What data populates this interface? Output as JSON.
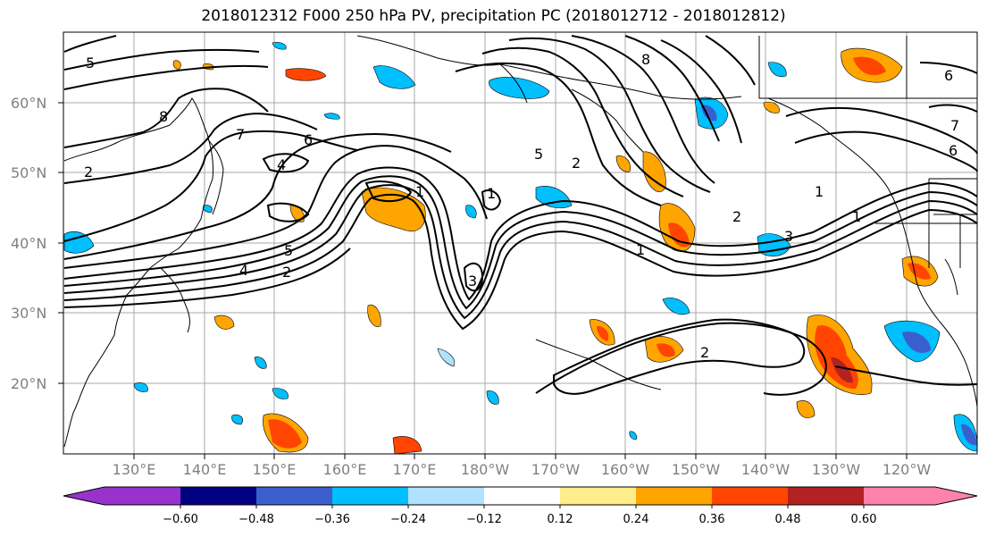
{
  "title": "2018012312 F000 250 hPa PV, precipitation PC (2018012712 - 2018012812)",
  "map": {
    "lat_labels": [
      "60°N",
      "50°N",
      "40°N",
      "30°N",
      "20°N"
    ],
    "lon_labels": [
      "130°E",
      "140°E",
      "150°E",
      "160°E",
      "170°E",
      "180°W",
      "170°W",
      "160°W",
      "150°W",
      "140°W",
      "130°W",
      "120°W"
    ],
    "contour_labels": [
      "5",
      "8",
      "7",
      "6",
      "4",
      "1",
      "2",
      "5",
      "4",
      "2",
      "3",
      "5",
      "1",
      "2",
      "8",
      "2",
      "6",
      "1",
      "3",
      "1",
      "2",
      "6",
      "7",
      "1"
    ],
    "shading_colors": [
      "#9932cc",
      "#000080",
      "#3a5fcd",
      "#00bfff",
      "#b0e2ff",
      "#ffffff",
      "#ffec8b",
      "#ffa500",
      "#ff4500",
      "#b22222",
      "#ff82ab"
    ]
  },
  "colorbar": {
    "tick_labels": [
      "−0.60",
      "−0.48",
      "−0.36",
      "−0.24",
      "−0.12",
      "0.12",
      "0.24",
      "0.36",
      "0.48",
      "0.60"
    ]
  }
}
